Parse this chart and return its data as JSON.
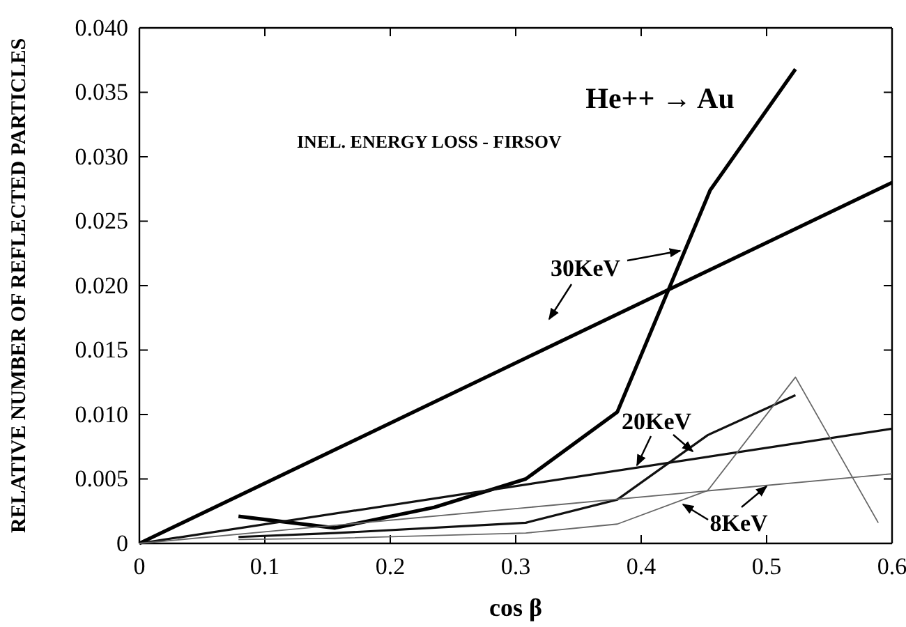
{
  "chart_data": {
    "type": "line",
    "title": "He++ → Au",
    "subtitle": "INEL. ENERGY LOSS - FIRSOV",
    "xlabel": "cos β",
    "ylabel": "RELATIVE NUMBER OF REFLECTED PARTICLES",
    "xlim": [
      0,
      0.6
    ],
    "xticks": [
      0,
      0.1,
      0.2,
      0.3,
      0.4,
      0.5,
      0.6
    ],
    "ylim": [
      0,
      0.04
    ],
    "yticks": [
      0,
      0.005,
      {
        "value": 0.01,
        "label": "0.010"
      },
      0.015,
      {
        "value": 0.02,
        "label": "0.020"
      },
      0.025,
      {
        "value": 0.03,
        "label": "0.030"
      },
      0.035,
      {
        "value": 0.04,
        "label": "0.040"
      }
    ],
    "grid": false,
    "marker": "none",
    "line_style": "solid",
    "series": [
      {
        "color": "#000000",
        "x": [
          0,
          0.6
        ],
        "values": [
          0,
          0.028
        ]
      },
      {
        "color": "#000000",
        "x": [
          0.079,
          0.156,
          0.235,
          0.308,
          0.381,
          0.455,
          0.523
        ],
        "values": [
          0.0021,
          0.0012,
          0.0028,
          0.005,
          0.0102,
          0.0274,
          0.0368
        ]
      },
      {
        "color": "#111111",
        "x": [
          0,
          0.6
        ],
        "values": [
          0,
          0.0089
        ]
      },
      {
        "color": "#111111",
        "x": [
          0.079,
          0.156,
          0.308,
          0.381,
          0.453,
          0.523
        ],
        "values": [
          0.0005,
          0.0008,
          0.0016,
          0.0034,
          0.0084,
          0.0115
        ]
      },
      {
        "color": "#666666",
        "x": [
          0,
          0.6
        ],
        "values": [
          0,
          0.0054
        ]
      },
      {
        "color": "#666666",
        "x": [
          0.079,
          0.156,
          0.308,
          0.381,
          0.453,
          0.523,
          0.589
        ],
        "values": [
          0.0003,
          0.0004,
          0.0008,
          0.0015,
          0.0041,
          0.0129,
          0.0016
        ]
      }
    ],
    "annotations": [
      "30KeV",
      "20KeV",
      "8KeV"
    ]
  }
}
